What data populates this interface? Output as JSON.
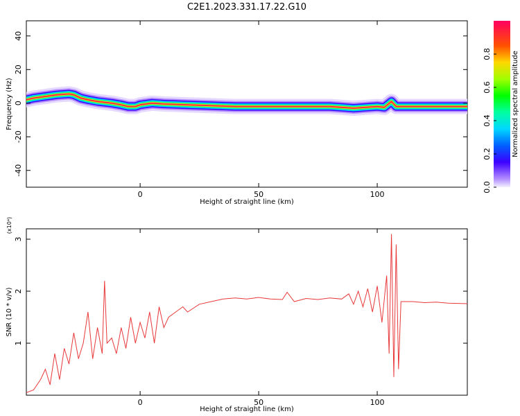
{
  "title": "C2E1.2023.331.17.22.G10",
  "chart_data": [
    {
      "type": "heatmap",
      "xlabel": "Height of straight line (km)",
      "ylabel": "Frequency (Hz)",
      "xlim": [
        -48,
        138
      ],
      "ylim": [
        -50,
        49
      ],
      "x_ticks": [
        "0",
        "50",
        "100"
      ],
      "y_ticks": [
        "-40",
        "-20",
        "0",
        "20",
        "40"
      ],
      "colorbar": {
        "label": "Normalized spectral amplitude",
        "range": [
          0,
          1
        ],
        "ticks": [
          "0.0",
          "0.2",
          "0.4",
          "0.6",
          "0.8"
        ]
      },
      "ridge": [
        {
          "x": -48,
          "y": 2
        },
        {
          "x": -45,
          "y": 3
        },
        {
          "x": -40,
          "y": 4
        },
        {
          "x": -35,
          "y": 5
        },
        {
          "x": -30,
          "y": 5.5
        },
        {
          "x": -28,
          "y": 5
        },
        {
          "x": -25,
          "y": 3
        },
        {
          "x": -22,
          "y": 2
        },
        {
          "x": -18,
          "y": 1
        },
        {
          "x": -12,
          "y": 0
        },
        {
          "x": -8,
          "y": -1
        },
        {
          "x": -5,
          "y": -2
        },
        {
          "x": -2,
          "y": -2
        },
        {
          "x": 0,
          "y": -1
        },
        {
          "x": 5,
          "y": 0
        },
        {
          "x": 10,
          "y": -0.5
        },
        {
          "x": 20,
          "y": -1
        },
        {
          "x": 30,
          "y": -1.5
        },
        {
          "x": 40,
          "y": -2
        },
        {
          "x": 60,
          "y": -2
        },
        {
          "x": 80,
          "y": -2
        },
        {
          "x": 85,
          "y": -2.5
        },
        {
          "x": 90,
          "y": -3
        },
        {
          "x": 95,
          "y": -2.5
        },
        {
          "x": 100,
          "y": -2
        },
        {
          "x": 103,
          "y": -2.5
        },
        {
          "x": 106,
          "y": 1
        },
        {
          "x": 108,
          "y": -2
        },
        {
          "x": 120,
          "y": -2
        },
        {
          "x": 138,
          "y": -2
        }
      ]
    },
    {
      "type": "line",
      "xlabel": "Height of straight line (km)",
      "ylabel": "SNR (10 * v/v)",
      "y_multiplier": "(x10⁴)",
      "xlim": [
        -48,
        138
      ],
      "ylim": [
        0,
        3.2
      ],
      "x_ticks": [
        "0",
        "50",
        "100"
      ],
      "y_ticks": [
        "1",
        "2",
        "3"
      ],
      "series": [
        {
          "color": "#e8383a",
          "x": [
            -48,
            -45,
            -42,
            -40,
            -38,
            -36,
            -34,
            -32,
            -30,
            -28,
            -26,
            -24,
            -22,
            -20,
            -18,
            -16,
            -15,
            -14,
            -12,
            -10,
            -8,
            -6,
            -4,
            -2,
            0,
            2,
            4,
            6,
            8,
            10,
            12,
            15,
            18,
            20,
            25,
            30,
            35,
            40,
            45,
            50,
            55,
            60,
            62,
            65,
            70,
            75,
            80,
            85,
            88,
            90,
            92,
            94,
            96,
            98,
            100,
            102,
            104,
            105,
            106,
            107,
            108,
            109,
            110,
            115,
            120,
            125,
            130,
            138
          ],
          "y": [
            0.05,
            0.1,
            0.3,
            0.5,
            0.2,
            0.8,
            0.3,
            0.9,
            0.6,
            1.2,
            0.7,
            1.0,
            1.6,
            0.7,
            1.3,
            0.8,
            2.2,
            1.0,
            1.1,
            0.8,
            1.3,
            0.9,
            1.5,
            1.0,
            1.4,
            1.1,
            1.6,
            1.0,
            1.7,
            1.3,
            1.5,
            1.6,
            1.7,
            1.6,
            1.75,
            1.8,
            1.85,
            1.87,
            1.85,
            1.88,
            1.85,
            1.84,
            1.98,
            1.8,
            1.86,
            1.84,
            1.87,
            1.85,
            1.95,
            1.75,
            2.0,
            1.7,
            2.05,
            1.6,
            2.1,
            1.4,
            2.3,
            0.8,
            3.1,
            0.35,
            2.9,
            0.5,
            1.8,
            1.8,
            1.78,
            1.79,
            1.77,
            1.76
          ]
        }
      ]
    }
  ]
}
